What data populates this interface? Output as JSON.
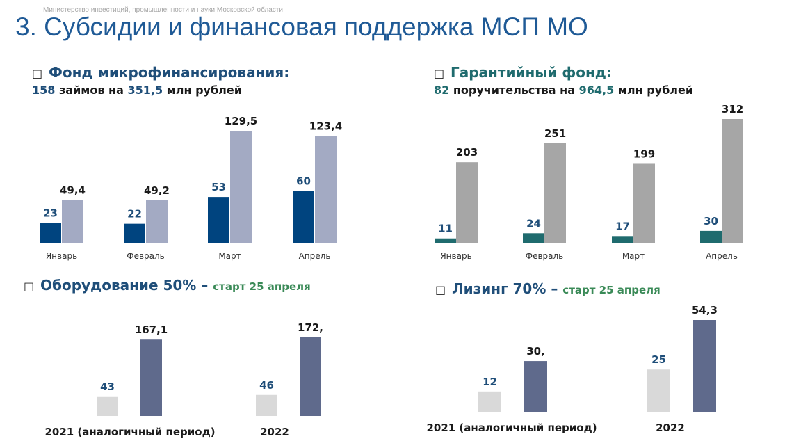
{
  "header": {
    "ministry": "Министерство инвестиций, промышленности и науки Московской области",
    "title": "3. Субсидии и финансовая поддержка МСП МО"
  },
  "colors": {
    "dark_blue": "#00447f",
    "light_blue_gray": "#a3aac3",
    "teal": "#1f6b6e",
    "gray": "#a6a6a6",
    "light_gray": "#d9d9d9",
    "slate": "#5f6a8c",
    "green": "#3a8a57"
  },
  "sections": {
    "microfinance": {
      "icon": "bullet-square-icon",
      "heading": "Фонд микрофинансирования:",
      "count": "158",
      "count_text": " займов на ",
      "amount": "351,5",
      "unit_text": " млн рублей"
    },
    "guarantee": {
      "icon": "bullet-square-icon",
      "heading": "Гарантийный фонд:",
      "count": "82",
      "count_text": " поручительства на ",
      "amount": "964,5",
      "unit_text": " млн рублей"
    },
    "equipment": {
      "icon": "bullet-square-icon",
      "heading": "Оборудование  50% –",
      "start": "старт 25 апреля"
    },
    "leasing": {
      "icon": "bullet-square-icon",
      "heading": "Лизинг 70% –",
      "start": "старт 25 апреля"
    }
  },
  "chart_data": [
    {
      "id": "microfinance",
      "type": "bar",
      "categories": [
        "Январь",
        "Февраль",
        "Март",
        "Апрель"
      ],
      "series": [
        {
          "values": [
            23,
            22,
            53,
            60
          ],
          "labels": [
            "23",
            "22",
            "53",
            "60"
          ],
          "color": "#00447f",
          "label_color": "#1f4e79"
        },
        {
          "values": [
            49.4,
            49.2,
            129.5,
            123.4
          ],
          "labels": [
            "49,4",
            "49,2",
            "129,5",
            "123,4"
          ],
          "color": "#a3aac3",
          "label_color": "#1a1a1a"
        }
      ]
    },
    {
      "id": "guarantee",
      "type": "bar",
      "categories": [
        "Январь",
        "Февраль",
        "Март",
        "Апрель"
      ],
      "series": [
        {
          "values": [
            11,
            24,
            17,
            30
          ],
          "labels": [
            "11",
            "24",
            "17",
            "30"
          ],
          "color": "#1f6b6e",
          "label_color": "#1f4e79"
        },
        {
          "values": [
            203,
            251,
            199,
            312
          ],
          "labels": [
            "203",
            "251",
            "199",
            "312"
          ],
          "color": "#a6a6a6",
          "label_color": "#1a1a1a"
        }
      ]
    },
    {
      "id": "equipment",
      "type": "bar",
      "categories": [
        "2021 (аналогичный период)",
        "2022"
      ],
      "series": [
        {
          "values": [
            43,
            46
          ],
          "labels": [
            "43",
            "46"
          ],
          "color": "#d9d9d9",
          "label_color": "#1f4e79"
        },
        {
          "values": [
            167.1,
            172
          ],
          "labels": [
            "167,1",
            "172,"
          ],
          "color": "#5f6a8c",
          "label_color": "#1a1a1a"
        }
      ]
    },
    {
      "id": "leasing",
      "type": "bar",
      "categories": [
        "2021 (аналогичный период)",
        "2022"
      ],
      "series": [
        {
          "values": [
            12,
            25
          ],
          "labels": [
            "12",
            "25"
          ],
          "color": "#d9d9d9",
          "label_color": "#1f4e79"
        },
        {
          "values": [
            30,
            54.3
          ],
          "labels": [
            "30,",
            "54,3"
          ],
          "color": "#5f6a8c",
          "label_color": "#1a1a1a"
        }
      ]
    }
  ]
}
